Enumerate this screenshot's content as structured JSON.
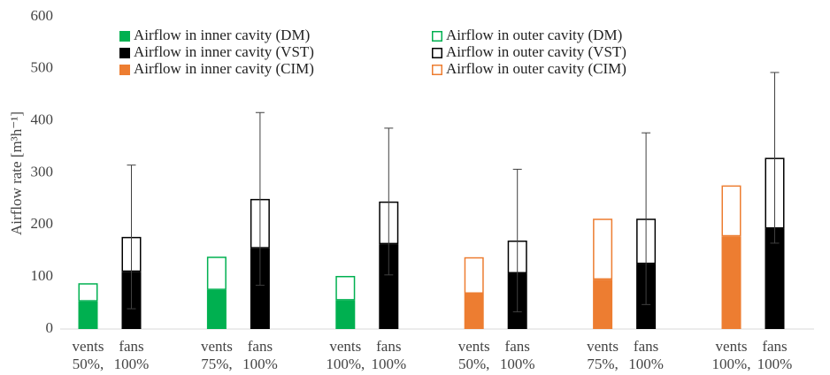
{
  "chart_data": {
    "type": "stacked-bar",
    "y_label": "Airflow rate [m³h⁻¹]",
    "categories": [
      [
        "vents",
        "50%,"
      ],
      [
        "fans",
        "100%"
      ],
      [
        "vents",
        "75%,"
      ],
      [
        "fans",
        "100%"
      ],
      [
        "vents",
        "100%,"
      ],
      [
        "fans",
        "100%"
      ],
      [
        "vents",
        "50%,"
      ],
      [
        "fans",
        "100%"
      ],
      [
        "vents",
        "75%,"
      ],
      [
        "fans",
        "100%"
      ],
      [
        "vents",
        "100%,"
      ],
      [
        "fans",
        "100%"
      ]
    ],
    "series": [
      {
        "name": "Airflow in inner cavity (DM)",
        "color": "#00b050",
        "filled": true,
        "values": [
          53,
          null,
          75,
          null,
          55,
          null,
          null,
          null,
          null,
          null,
          null,
          null
        ]
      },
      {
        "name": "Airflow in outer cavity (DM)",
        "color": "#00b050",
        "filled": false,
        "values": [
          35,
          null,
          64,
          null,
          47,
          null,
          null,
          null,
          null,
          null,
          null,
          null
        ]
      },
      {
        "name": "Airflow in inner cavity (VST)",
        "color": "#000000",
        "filled": true,
        "values": [
          null,
          110,
          null,
          155,
          null,
          163,
          null,
          107,
          null,
          125,
          null,
          193
        ]
      },
      {
        "name": "Airflow in outer cavity (VST)",
        "color": "#000000",
        "filled": false,
        "values": [
          null,
          67,
          null,
          95,
          null,
          82,
          null,
          63,
          null,
          87,
          null,
          136
        ],
        "errors": [
          null,
          138,
          null,
          166,
          null,
          141,
          null,
          137,
          null,
          165,
          null,
          164
        ]
      },
      {
        "name": "Airflow in inner cavity (CIM)",
        "color": "#ed7d31",
        "filled": true,
        "values": [
          null,
          null,
          null,
          null,
          null,
          null,
          68,
          null,
          95,
          null,
          178,
          null
        ]
      },
      {
        "name": "Airflow in outer cavity (CIM)",
        "color": "#ed7d31",
        "filled": false,
        "values": [
          null,
          null,
          null,
          null,
          null,
          null,
          70,
          null,
          117,
          null,
          98,
          null
        ]
      }
    ],
    "ylim": [
      0,
      600
    ],
    "yticks": [
      0,
      100,
      200,
      300,
      400,
      500,
      600
    ],
    "grid": false
  }
}
